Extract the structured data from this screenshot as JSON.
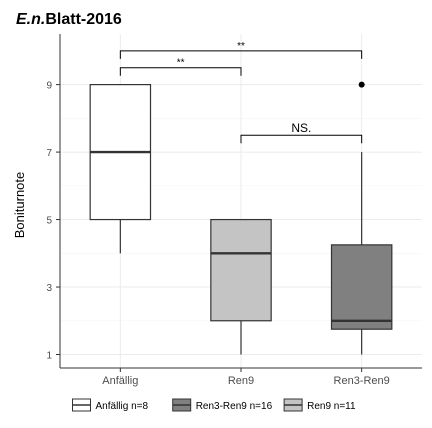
{
  "chart_data": {
    "type": "boxplot",
    "title_italic": "E.n.",
    "title_rest": "Blatt-2016",
    "ylabel": "Boniturnote",
    "xlabel": "",
    "ylim": [
      0.6,
      10.5
    ],
    "yticks": [
      1,
      3,
      5,
      7,
      9
    ],
    "grid": true,
    "legend_position": "bottom",
    "categories": [
      "Anfällig",
      "Ren9",
      "Ren3-Ren9"
    ],
    "boxes": [
      {
        "category": "Anfällig",
        "min": 4,
        "q1": 5,
        "median": 7,
        "q3": 9,
        "max": 9,
        "outliers": [],
        "color": "#ffffff"
      },
      {
        "category": "Ren9",
        "min": 1,
        "q1": 2,
        "median": 4,
        "q3": 5,
        "max": 5,
        "outliers": [],
        "color": "#c4c4c4"
      },
      {
        "category": "Ren3-Ren9",
        "min": 1,
        "q1": 1.75,
        "median": 2,
        "q3": 4.25,
        "max": 7,
        "outliers": [
          9
        ],
        "color": "#808080"
      }
    ],
    "significance": [
      {
        "from": "Anfällig",
        "to": "Ren9",
        "y": 9.5,
        "label": "**"
      },
      {
        "from": "Anfällig",
        "to": "Ren3-Ren9",
        "y": 10.0,
        "label": "**"
      },
      {
        "from": "Ren9",
        "to": "Ren3-Ren9",
        "y": 7.5,
        "label": "NS."
      }
    ],
    "legend": [
      {
        "label": "Anfällig n=8",
        "color": "#ffffff"
      },
      {
        "label": "Ren3-Ren9 n=16",
        "color": "#808080"
      },
      {
        "label": "Ren9 n=11",
        "color": "#c4c4c4"
      }
    ]
  }
}
